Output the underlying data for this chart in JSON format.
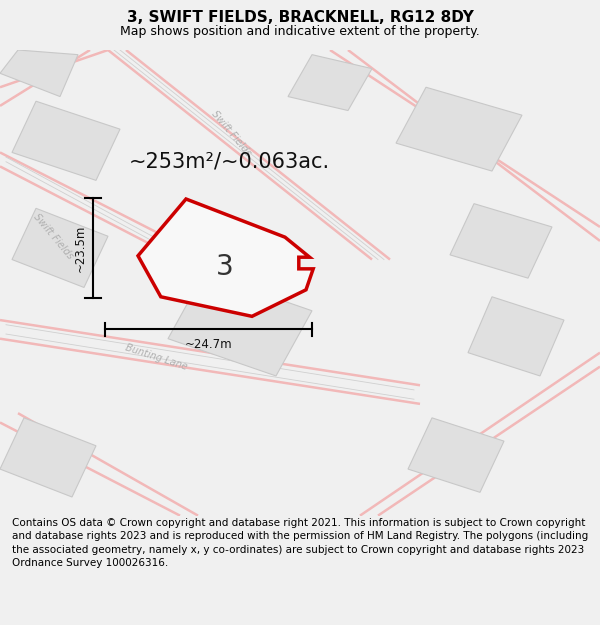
{
  "title": "3, SWIFT FIELDS, BRACKNELL, RG12 8DY",
  "subtitle": "Map shows position and indicative extent of the property.",
  "area_text": "~253m²/~0.063ac.",
  "dim_vertical": "~23.5m",
  "dim_horizontal": "~24.7m",
  "plot_number": "3",
  "footer": "Contains OS data © Crown copyright and database right 2021. This information is subject to Crown copyright and database rights 2023 and is reproduced with the permission of HM Land Registry. The polygons (including the associated geometry, namely x, y co-ordinates) are subject to Crown copyright and database rights 2023 Ordnance Survey 100026316.",
  "bg_color": "#f0f0f0",
  "map_bg": "#ffffff",
  "plot_stroke": "#cc0000",
  "road_pink": "#f2b8b8",
  "road_gray": "#d0d0d0",
  "building_fill": "#e0e0e0",
  "building_edge": "#c8c8c8",
  "title_fontsize": 11,
  "subtitle_fontsize": 9,
  "footer_fontsize": 7.5,
  "fig_width": 6.0,
  "fig_height": 6.25,
  "dpi": 100
}
